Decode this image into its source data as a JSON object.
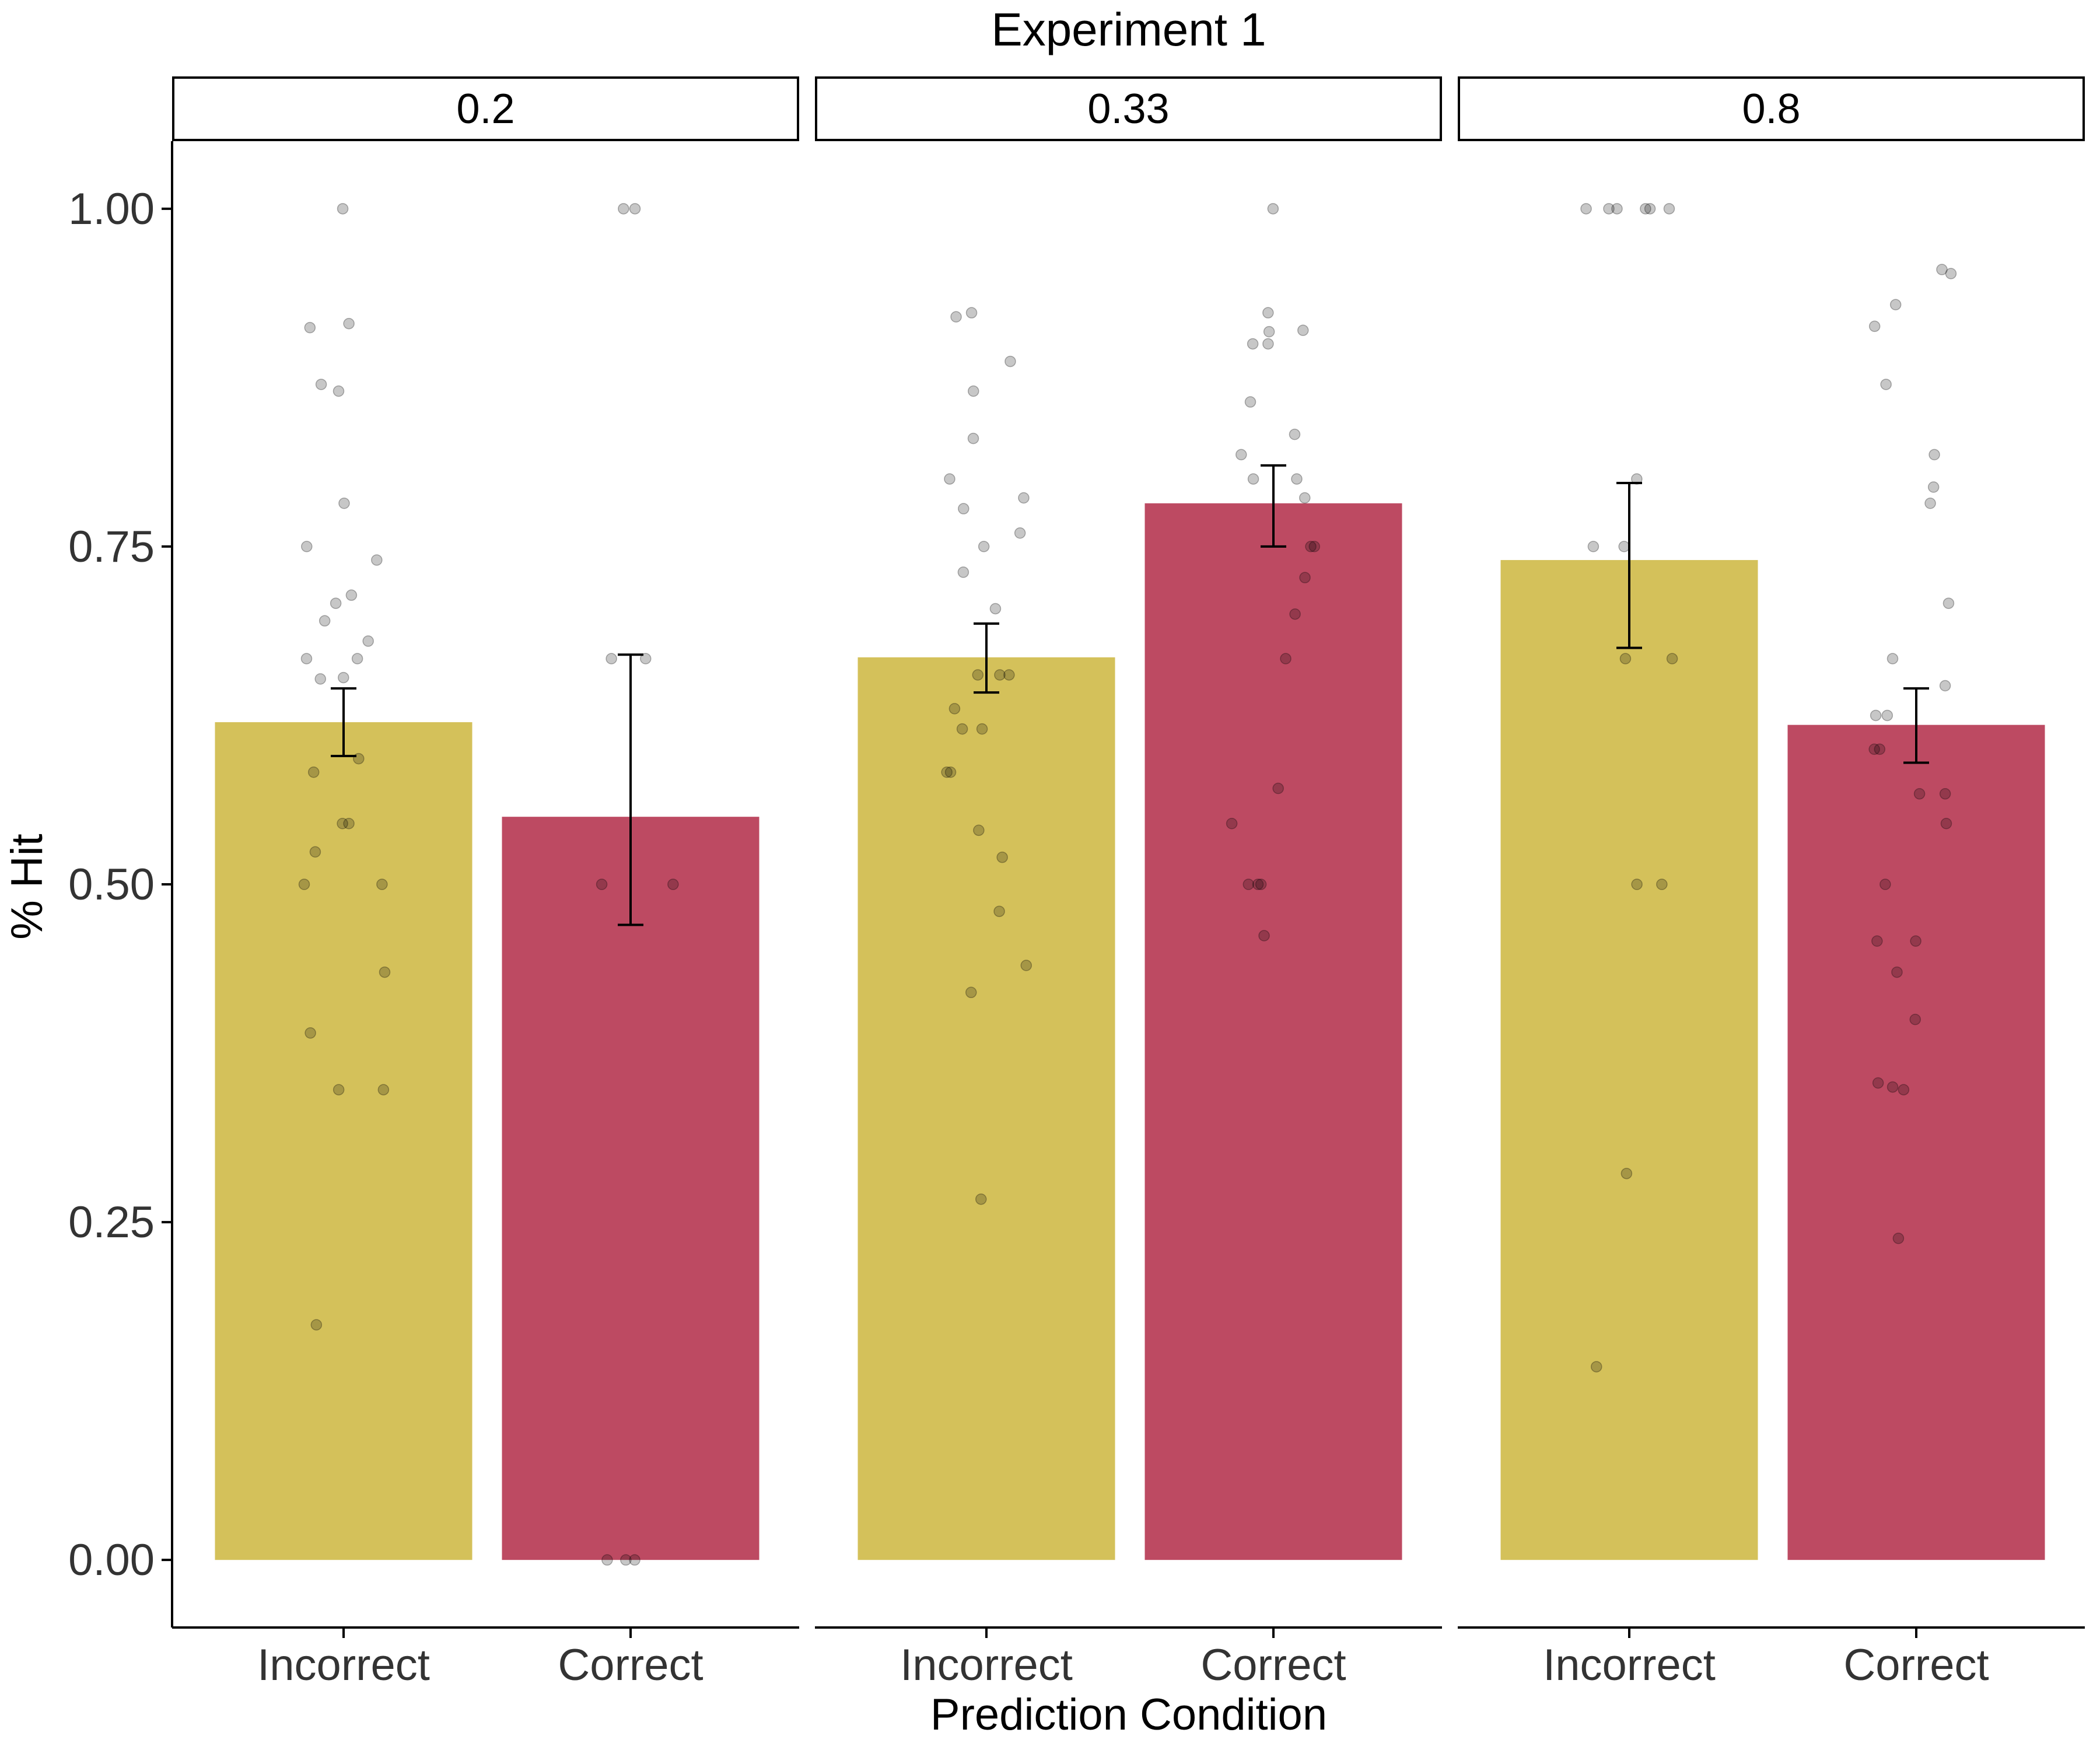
{
  "chart_data": {
    "type": "bar",
    "title": "Experiment 1",
    "xlabel": "Prediction Condition",
    "ylabel": "% Hit",
    "ylim": [
      -0.05,
      1.05
    ],
    "yticks": [
      "0.00",
      "0.25",
      "0.50",
      "0.75",
      "1.00"
    ],
    "ytick_values": [
      0,
      0.25,
      0.5,
      0.75,
      1.0
    ],
    "categories": [
      "Incorrect",
      "Correct"
    ],
    "colors": {
      "Incorrect": "#d4c15a",
      "Correct": "#bd4a62"
    },
    "grid": false,
    "facets": [
      {
        "label": "0.2",
        "bars": [
          {
            "category": "Incorrect",
            "value": 0.62,
            "err_low": 0.595,
            "err_high": 0.645,
            "points": [
              1.0,
              0.915,
              0.912,
              0.87,
              0.865,
              0.782,
              0.75,
              0.74,
              0.714,
              0.708,
              0.695,
              0.68,
              0.667,
              0.667,
              0.653,
              0.652,
              0.593,
              0.583,
              0.545,
              0.545,
              0.524,
              0.5,
              0.5,
              0.435,
              0.39,
              0.348,
              0.348,
              0.174
            ]
          },
          {
            "category": "Correct",
            "value": 0.55,
            "err_low": 0.47,
            "err_high": 0.67,
            "points": [
              1.0,
              1.0,
              0.667,
              0.667,
              0.5,
              0.5,
              0.0,
              0.0,
              0.0
            ]
          }
        ]
      },
      {
        "label": "0.33",
        "bars": [
          {
            "category": "Incorrect",
            "value": 0.668,
            "err_low": 0.642,
            "err_high": 0.693,
            "points": [
              0.923,
              0.92,
              0.887,
              0.865,
              0.83,
              0.8,
              0.786,
              0.778,
              0.76,
              0.75,
              0.731,
              0.704,
              0.655,
              0.655,
              0.655,
              0.63,
              0.615,
              0.615,
              0.583,
              0.583,
              0.54,
              0.52,
              0.48,
              0.44,
              0.42,
              0.267
            ]
          },
          {
            "category": "Correct",
            "value": 0.782,
            "err_low": 0.75,
            "err_high": 0.81,
            "points": [
              1.0,
              0.923,
              0.91,
              0.909,
              0.9,
              0.9,
              0.857,
              0.833,
              0.818,
              0.8,
              0.8,
              0.786,
              0.75,
              0.75,
              0.727,
              0.7,
              0.667,
              0.571,
              0.545,
              0.5,
              0.5,
              0.5,
              0.462
            ]
          }
        ]
      },
      {
        "label": "0.8",
        "bars": [
          {
            "category": "Incorrect",
            "value": 0.74,
            "err_low": 0.675,
            "err_high": 0.797,
            "points": [
              1.0,
              1.0,
              1.0,
              1.0,
              1.0,
              1.0,
              0.8,
              0.75,
              0.75,
              0.667,
              0.667,
              0.5,
              0.5,
              0.286,
              0.143
            ]
          },
          {
            "category": "Correct",
            "value": 0.618,
            "err_low": 0.59,
            "err_high": 0.645,
            "points": [
              0.955,
              0.952,
              0.929,
              0.913,
              0.87,
              0.818,
              0.794,
              0.782,
              0.708,
              0.667,
              0.647,
              0.625,
              0.625,
              0.6,
              0.6,
              0.567,
              0.567,
              0.545,
              0.5,
              0.458,
              0.458,
              0.435,
              0.4,
              0.353,
              0.348,
              0.35,
              0.238
            ]
          }
        ]
      }
    ]
  }
}
